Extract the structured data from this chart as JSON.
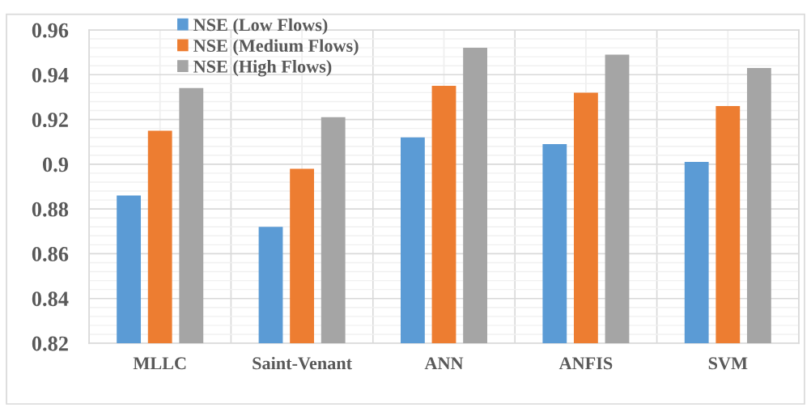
{
  "chart_data": {
    "type": "bar",
    "categories": [
      "MLLC",
      "Saint-Venant",
      "ANN",
      "ANFIS",
      "SVM"
    ],
    "series": [
      {
        "name": "NSE (Low Flows)",
        "color": "#5b9bd5",
        "values": [
          0.886,
          0.872,
          0.912,
          0.909,
          0.901
        ]
      },
      {
        "name": "NSE (Medium Flows)",
        "color": "#ed7d31",
        "values": [
          0.915,
          0.898,
          0.935,
          0.932,
          0.926
        ]
      },
      {
        "name": "NSE (High Flows)",
        "color": "#a5a5a5",
        "values": [
          0.934,
          0.921,
          0.952,
          0.949,
          0.943
        ]
      }
    ],
    "ylim": [
      0.82,
      0.96
    ],
    "yticks": [
      0.82,
      0.84,
      0.86,
      0.88,
      {
        "value": 0.9,
        "label": "0.9"
      },
      0.92,
      0.94,
      0.96
    ],
    "grid": true,
    "legend": "top"
  }
}
